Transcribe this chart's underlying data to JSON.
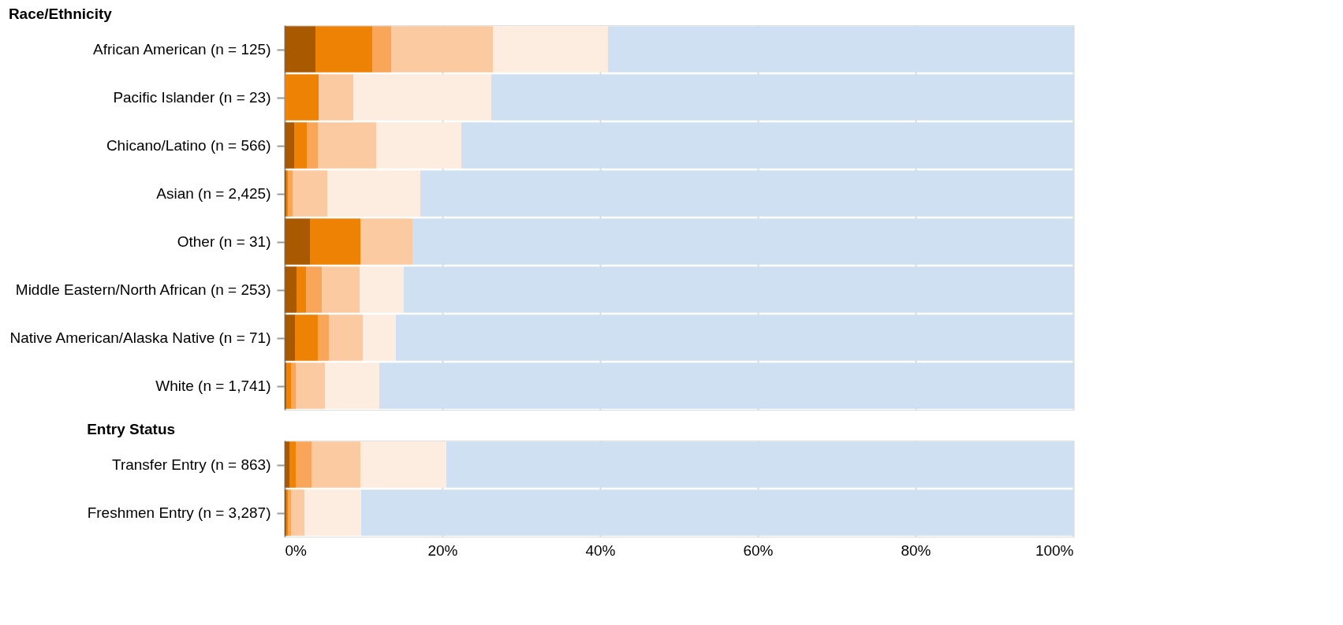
{
  "chart_data": [
    {
      "type": "bar",
      "orientation": "horizontal",
      "stacked": true,
      "title": "Race/Ethnicity",
      "categories": [
        "African American (n = 125)",
        "Pacific Islander (n = 23)",
        "Chicano/Latino (n = 566)",
        "Asian (n = 2,425)",
        "Other (n = 31)",
        "Middle Eastern/North African (n = 253)",
        "Native American/Alaska Native (n = 71)",
        "White (n = 1,741)"
      ],
      "series": [
        {
          "color": "#a95a00",
          "values": [
            3.9,
            0,
            1.2,
            0.2,
            3.2,
            1.5,
            1.3,
            0.2
          ]
        },
        {
          "color": "#ee8205",
          "values": [
            7.2,
            4.3,
            1.6,
            0.2,
            6.4,
            1.2,
            2.9,
            0.6
          ]
        },
        {
          "color": "#f9a55a",
          "values": [
            2.4,
            0,
            1.4,
            0.6,
            0,
            2.0,
            1.4,
            0.6
          ]
        },
        {
          "color": "#fccaa1",
          "values": [
            12.9,
            4.4,
            7.4,
            4.4,
            6.6,
            4.8,
            4.3,
            3.7
          ]
        },
        {
          "color": "#fdece0",
          "values": [
            14.6,
            17.5,
            10.8,
            11.8,
            0,
            5.6,
            4.2,
            6.9
          ]
        },
        {
          "color": "#cfe0f2",
          "values": [
            59.0,
            73.8,
            77.6,
            82.8,
            83.8,
            84.9,
            85.9,
            88.0
          ]
        }
      ],
      "xlim": [
        0,
        100
      ],
      "xticks": [
        0,
        20,
        40,
        60,
        80,
        100
      ],
      "tick_labels": "y",
      "grid": "x"
    },
    {
      "type": "bar",
      "orientation": "horizontal",
      "stacked": true,
      "title": "Entry Status",
      "categories": [
        "Transfer Entry (n = 863)",
        "Freshmen Entry (n = 3,287)"
      ],
      "series": [
        {
          "color": "#a95a00",
          "values": [
            0.6,
            0.2
          ]
        },
        {
          "color": "#ee8205",
          "values": [
            0.8,
            0.2
          ]
        },
        {
          "color": "#f9a55a",
          "values": [
            2.0,
            0.4
          ]
        },
        {
          "color": "#fccaa1",
          "values": [
            6.2,
            1.7
          ]
        },
        {
          "color": "#fdece0",
          "values": [
            10.9,
            7.2
          ]
        },
        {
          "color": "#cfe0f2",
          "values": [
            79.5,
            90.3
          ]
        }
      ],
      "xlim": [
        0,
        100
      ],
      "xticks": [
        {
          "value": 0,
          "label": "0%"
        },
        {
          "value": 20,
          "label": "20%"
        },
        {
          "value": 40,
          "label": "40%"
        },
        {
          "value": 60,
          "label": "60%"
        },
        {
          "value": 80,
          "label": "80%"
        },
        {
          "value": 100,
          "label": "100%"
        }
      ],
      "grid": "x"
    }
  ]
}
